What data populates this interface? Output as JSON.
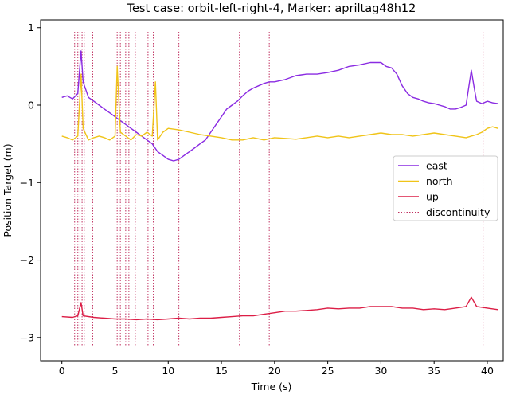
{
  "chart_data": {
    "type": "line",
    "title": "Test case: orbit-left-right-4, Marker: apriltag48h12",
    "xlabel": "Time (s)",
    "ylabel": "Position Target (m)",
    "xlim": [
      -2,
      41.5
    ],
    "ylim": [
      -3.3,
      1.1
    ],
    "xticks": [
      0,
      5,
      10,
      15,
      20,
      25,
      30,
      35,
      40
    ],
    "yticks": [
      1,
      0,
      -1,
      -2,
      -3
    ],
    "grid": false,
    "legend_position": "center-right",
    "discontinuity_label": "discontinuity",
    "discontinuity_color": "#c03060",
    "discontinuities": [
      1.2,
      1.5,
      1.7,
      1.9,
      2.1,
      2.9,
      5.0,
      5.2,
      5.5,
      6.0,
      6.3,
      6.9,
      8.1,
      8.6,
      11.0,
      16.7,
      19.5,
      39.6
    ],
    "series": [
      {
        "name": "east",
        "color": "#8a2be2",
        "x": [
          0,
          0.5,
          1,
          1.5,
          1.8,
          2,
          2.5,
          3,
          3.5,
          4,
          4.5,
          5,
          5.5,
          6,
          6.5,
          7,
          7.5,
          8,
          8.5,
          9,
          9.5,
          10,
          10.5,
          11,
          11.5,
          12,
          12.5,
          13,
          13.5,
          14,
          14.5,
          15,
          15.5,
          16,
          16.5,
          17,
          17.5,
          18,
          18.5,
          19,
          19.5,
          20,
          21,
          22,
          23,
          24,
          25,
          26,
          27,
          28,
          29,
          30,
          30.5,
          31,
          31.5,
          32,
          32.5,
          33,
          33.5,
          34,
          34.5,
          35,
          35.5,
          36,
          36.5,
          37,
          37.5,
          38,
          38.5,
          38.8,
          39,
          39.5,
          40,
          40.5,
          41
        ],
        "y": [
          0.1,
          0.12,
          0.08,
          0.15,
          0.7,
          0.3,
          0.1,
          0.05,
          0.0,
          -0.05,
          -0.1,
          -0.15,
          -0.2,
          -0.25,
          -0.3,
          -0.35,
          -0.4,
          -0.45,
          -0.5,
          -0.6,
          -0.65,
          -0.7,
          -0.72,
          -0.7,
          -0.65,
          -0.6,
          -0.55,
          -0.5,
          -0.45,
          -0.35,
          -0.25,
          -0.15,
          -0.05,
          0.0,
          0.05,
          0.12,
          0.18,
          0.22,
          0.25,
          0.28,
          0.3,
          0.3,
          0.33,
          0.38,
          0.4,
          0.4,
          0.42,
          0.45,
          0.5,
          0.52,
          0.55,
          0.55,
          0.5,
          0.48,
          0.4,
          0.25,
          0.15,
          0.1,
          0.08,
          0.05,
          0.03,
          0.02,
          0.0,
          -0.02,
          -0.05,
          -0.05,
          -0.03,
          0.0,
          0.45,
          0.2,
          0.05,
          0.02,
          0.05,
          0.03,
          0.02
        ]
      },
      {
        "name": "north",
        "color": "#f0c419",
        "x": [
          0,
          0.5,
          1,
          1.5,
          1.8,
          2,
          2.5,
          3,
          3.5,
          4,
          4.5,
          5,
          5.2,
          5.5,
          6,
          6.5,
          7,
          7.5,
          8,
          8.5,
          8.8,
          9,
          9.5,
          10,
          11,
          12,
          13,
          14,
          15,
          16,
          17,
          18,
          19,
          20,
          21,
          22,
          23,
          24,
          25,
          26,
          27,
          28,
          29,
          30,
          31,
          32,
          33,
          34,
          35,
          36,
          37,
          38,
          38.5,
          39,
          39.5,
          40,
          40.5,
          41
        ],
        "y": [
          -0.4,
          -0.42,
          -0.45,
          -0.4,
          0.4,
          -0.3,
          -0.45,
          -0.42,
          -0.4,
          -0.42,
          -0.45,
          -0.4,
          0.5,
          -0.35,
          -0.4,
          -0.45,
          -0.38,
          -0.4,
          -0.35,
          -0.4,
          0.3,
          -0.45,
          -0.35,
          -0.3,
          -0.32,
          -0.35,
          -0.38,
          -0.4,
          -0.42,
          -0.45,
          -0.45,
          -0.42,
          -0.45,
          -0.42,
          -0.43,
          -0.44,
          -0.42,
          -0.4,
          -0.42,
          -0.4,
          -0.42,
          -0.4,
          -0.38,
          -0.36,
          -0.38,
          -0.38,
          -0.4,
          -0.38,
          -0.36,
          -0.38,
          -0.4,
          -0.42,
          -0.4,
          -0.38,
          -0.35,
          -0.3,
          -0.28,
          -0.3
        ]
      },
      {
        "name": "up",
        "color": "#dc1e46",
        "x": [
          0,
          1,
          1.5,
          1.8,
          2,
          3,
          4,
          5,
          6,
          7,
          8,
          9,
          10,
          11,
          12,
          13,
          14,
          15,
          16,
          17,
          18,
          19,
          20,
          21,
          22,
          23,
          24,
          25,
          26,
          27,
          28,
          29,
          30,
          31,
          32,
          33,
          34,
          35,
          36,
          37,
          38,
          38.5,
          39,
          40,
          41
        ],
        "y": [
          -2.73,
          -2.74,
          -2.72,
          -2.55,
          -2.72,
          -2.74,
          -2.75,
          -2.76,
          -2.76,
          -2.77,
          -2.76,
          -2.77,
          -2.76,
          -2.75,
          -2.76,
          -2.75,
          -2.75,
          -2.74,
          -2.73,
          -2.72,
          -2.72,
          -2.7,
          -2.68,
          -2.66,
          -2.66,
          -2.65,
          -2.64,
          -2.62,
          -2.63,
          -2.62,
          -2.62,
          -2.6,
          -2.6,
          -2.6,
          -2.62,
          -2.62,
          -2.64,
          -2.63,
          -2.64,
          -2.62,
          -2.6,
          -2.48,
          -2.6,
          -2.62,
          -2.64
        ]
      }
    ]
  }
}
